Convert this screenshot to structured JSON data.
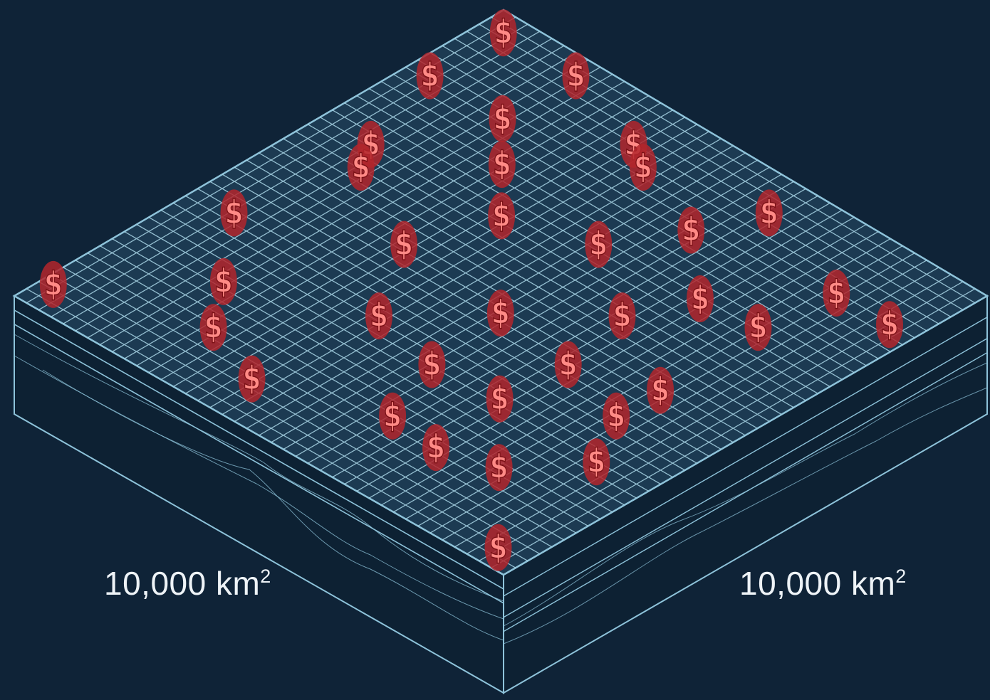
{
  "labels": {
    "left_dimension": {
      "value": "10,000 km",
      "superscript": "2"
    },
    "right_dimension": {
      "value": "10,000 km",
      "superscript": "2"
    }
  },
  "colors": {
    "background": "#0f2337",
    "grid_line": "#a9d6e6",
    "block_outline": "#8ec3da",
    "block_side": "#0d2133",
    "marker_fill": "#b3262c",
    "marker_glyph": "#ff8a86",
    "label_text": "#eef3f7"
  },
  "marker_glyph": "$",
  "marker_icon": "dollar-sign-icon",
  "grid_cells_per_side": 40,
  "marker_grid_positions": [
    [
      0.04,
      0.04
    ],
    [
      0.04,
      0.19
    ],
    [
      0.19,
      0.04
    ],
    [
      0.1,
      0.37
    ],
    [
      0.19,
      0.19
    ],
    [
      0.37,
      0.1
    ],
    [
      0.08,
      0.63
    ],
    [
      0.13,
      0.42
    ],
    [
      0.27,
      0.27
    ],
    [
      0.42,
      0.13
    ],
    [
      0.58,
      0.19
    ],
    [
      0.63,
      0.08
    ],
    [
      0.02,
      0.94
    ],
    [
      0.19,
      0.76
    ],
    [
      0.31,
      0.51
    ],
    [
      0.36,
      0.36
    ],
    [
      0.51,
      0.31
    ],
    [
      0.71,
      0.3
    ],
    [
      0.84,
      0.15
    ],
    [
      0.95,
      0.15
    ],
    [
      0.26,
      0.85
    ],
    [
      0.41,
      0.66
    ],
    [
      0.53,
      0.53
    ],
    [
      0.66,
      0.41
    ],
    [
      0.82,
      0.29
    ],
    [
      0.39,
      0.9
    ],
    [
      0.55,
      0.69
    ],
    [
      0.69,
      0.55
    ],
    [
      0.83,
      0.5
    ],
    [
      0.6,
      0.82
    ],
    [
      0.68,
      0.68
    ],
    [
      0.83,
      0.59
    ],
    [
      0.7,
      0.83
    ],
    [
      0.8,
      0.8
    ],
    [
      0.89,
      0.69
    ],
    [
      0.94,
      0.94
    ]
  ]
}
